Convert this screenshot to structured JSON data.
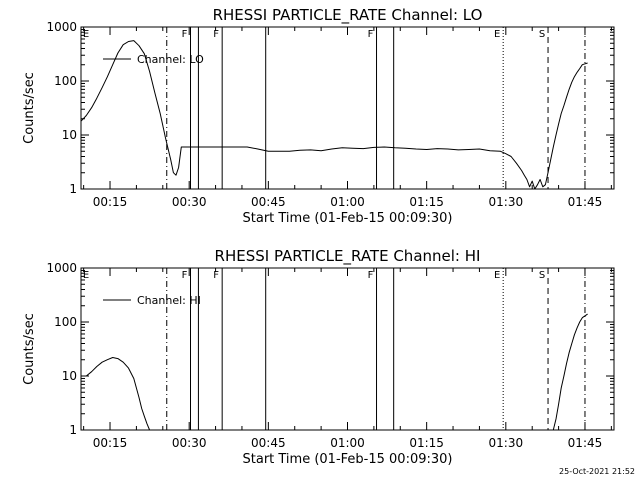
{
  "footer": {
    "timestamp": "25-Oct-2021 21:52"
  },
  "chart_data": [
    {
      "type": "line",
      "title": "RHESSI PARTICLE_RATE Channel: LO",
      "xlabel": "Start Time (01-Feb-15 00:09:30)",
      "ylabel": "Counts/sec",
      "y_scale": "log",
      "xlim": [
        "00:09:30",
        "01:50:30"
      ],
      "ylim": [
        1,
        1000
      ],
      "x_tick_labels": [
        "00:15",
        "00:30",
        "00:45",
        "01:00",
        "01:15",
        "01:30",
        "01:45"
      ],
      "y_tick_labels": [
        "1",
        "10",
        "100",
        "1000"
      ],
      "legend": {
        "position": "top-left",
        "entries": [
          "Channel: LO"
        ]
      },
      "series": [
        {
          "name": "Channel: LO",
          "x": [
            "00:09:30",
            "00:10:30",
            "00:11:30",
            "00:12:30",
            "00:13:30",
            "00:14:30",
            "00:15:30",
            "00:16:30",
            "00:17:30",
            "00:18:30",
            "00:19:30",
            "00:20:30",
            "00:21:30",
            "00:22:30",
            "00:23:30",
            "00:24:30",
            "00:25:30",
            "00:26:30",
            "00:27:00",
            "00:27:30",
            "00:28:00",
            "00:28:30",
            "00:29:30",
            "00:31:00",
            "00:33:00",
            "00:35:00",
            "00:37:00",
            "00:39:00",
            "00:41:00",
            "00:43:00",
            "00:45:00",
            "00:47:00",
            "00:49:00",
            "00:51:00",
            "00:53:00",
            "00:55:00",
            "00:57:00",
            "00:59:00",
            "01:01:00",
            "01:03:00",
            "01:05:00",
            "01:07:00",
            "01:09:00",
            "01:11:00",
            "01:13:00",
            "01:15:00",
            "01:17:00",
            "01:19:00",
            "01:21:00",
            "01:23:00",
            "01:25:00",
            "01:27:00",
            "01:29:00",
            "01:30:00",
            "01:31:00",
            "01:32:00",
            "01:33:00",
            "01:33:30",
            "01:34:00",
            "01:34:30",
            "01:35:00",
            "01:35:30",
            "01:36:00",
            "01:36:30",
            "01:37:00",
            "01:37:30",
            "01:38:00",
            "01:38:30",
            "01:39:00",
            "01:39:30",
            "01:40:00",
            "01:40:30",
            "01:41:00",
            "01:41:30",
            "01:42:00",
            "01:42:30",
            "01:43:00",
            "01:43:30",
            "01:44:00",
            "01:44:30",
            "01:45:30"
          ],
          "values": [
            18,
            23,
            32,
            48,
            75,
            120,
            200,
            330,
            470,
            540,
            560,
            450,
            320,
            150,
            60,
            25,
            9,
            3.5,
            2,
            1.8,
            2.5,
            6,
            6,
            6,
            6,
            6,
            6,
            6,
            6,
            5.5,
            5,
            5,
            5,
            5.2,
            5.3,
            5.1,
            5.5,
            5.8,
            5.7,
            5.6,
            5.9,
            6,
            5.8,
            5.7,
            5.5,
            5.4,
            5.6,
            5.5,
            5.3,
            5.4,
            5.5,
            5.1,
            5,
            4.5,
            4,
            3,
            2.2,
            1.8,
            1.5,
            1.1,
            1.4,
            1,
            1.2,
            1.5,
            1.1,
            1.2,
            2,
            3.5,
            6,
            10,
            16,
            25,
            35,
            50,
            70,
            95,
            120,
            145,
            170,
            200,
            215
          ]
        }
      ],
      "markers": [
        {
          "x": "00:25:45",
          "label": "",
          "style": "dashdot"
        },
        {
          "x": "00:30:15",
          "label": "F",
          "style": "solid"
        },
        {
          "x": "00:31:45",
          "label": "",
          "style": "solid"
        },
        {
          "x": "00:36:15",
          "label": "F",
          "style": "solid"
        },
        {
          "x": "00:44:30",
          "label": "",
          "style": "solid"
        },
        {
          "x": "01:05:30",
          "label": "F",
          "style": "solid"
        },
        {
          "x": "01:08:45",
          "label": "",
          "style": "solid"
        },
        {
          "x": "01:29:30",
          "label": "E",
          "style": "dotted"
        },
        {
          "x": "01:38:00",
          "label": "S",
          "style": "dashed"
        },
        {
          "x": "01:45:00",
          "label": "",
          "style": "dashdot"
        }
      ],
      "corner_label": "E"
    },
    {
      "type": "line",
      "title": "RHESSI PARTICLE_RATE Channel: HI",
      "xlabel": "Start Time (01-Feb-15 00:09:30)",
      "ylabel": "Counts/sec",
      "y_scale": "log",
      "xlim": [
        "00:09:30",
        "01:50:30"
      ],
      "ylim": [
        1,
        1000
      ],
      "x_tick_labels": [
        "00:15",
        "00:30",
        "00:45",
        "01:00",
        "01:15",
        "01:30",
        "01:45"
      ],
      "y_tick_labels": [
        "1",
        "10",
        "100",
        "1000"
      ],
      "legend": {
        "position": "top-left",
        "entries": [
          "Channel: HI"
        ]
      },
      "series": [
        {
          "name": "Channel: HI",
          "x": [
            "00:09:30",
            "00:10:30",
            "00:11:30",
            "00:12:30",
            "00:13:30",
            "00:14:30",
            "00:15:30",
            "00:16:30",
            "00:17:30",
            "00:18:30",
            "00:19:30",
            "00:20:00",
            "00:20:30",
            "00:21:00",
            "00:21:30",
            "00:22:00",
            "00:22:30"
          ],
          "values": [
            10,
            10,
            12,
            15,
            18,
            20,
            22,
            21,
            18,
            14,
            9,
            6,
            4,
            2.5,
            1.8,
            1.3,
            1.0
          ],
          "x2": [
            "01:39:00",
            "01:39:30",
            "01:40:00",
            "01:40:30",
            "01:41:00",
            "01:41:30",
            "01:42:00",
            "01:42:30",
            "01:43:00",
            "01:43:30",
            "01:44:00",
            "01:44:30",
            "01:45:30"
          ],
          "values2": [
            1.0,
            1.6,
            3,
            6,
            10,
            17,
            27,
            40,
            58,
            78,
            100,
            120,
            140
          ]
        }
      ],
      "markers": [
        {
          "x": "00:25:45",
          "label": "",
          "style": "dashdot"
        },
        {
          "x": "00:30:15",
          "label": "F",
          "style": "solid"
        },
        {
          "x": "00:31:45",
          "label": "",
          "style": "solid"
        },
        {
          "x": "00:36:15",
          "label": "F",
          "style": "solid"
        },
        {
          "x": "00:44:30",
          "label": "",
          "style": "solid"
        },
        {
          "x": "01:05:30",
          "label": "F",
          "style": "solid"
        },
        {
          "x": "01:08:45",
          "label": "",
          "style": "solid"
        },
        {
          "x": "01:29:30",
          "label": "E",
          "style": "dotted"
        },
        {
          "x": "01:38:00",
          "label": "S",
          "style": "dashed"
        },
        {
          "x": "01:45:00",
          "label": "",
          "style": "dashdot"
        }
      ],
      "corner_label": "E"
    }
  ]
}
